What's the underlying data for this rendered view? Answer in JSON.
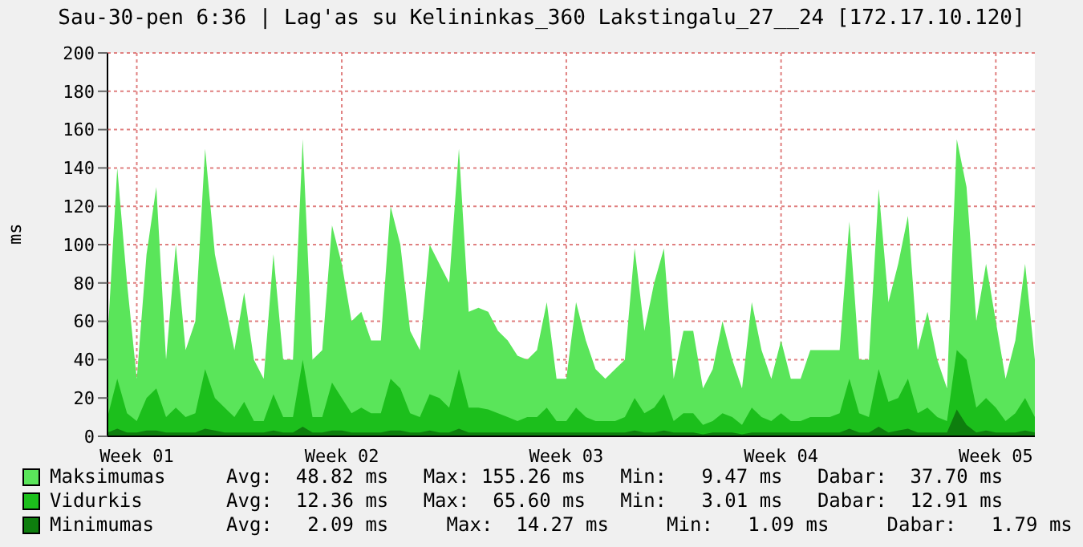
{
  "chart_data": {
    "type": "area",
    "title": "Sau-30-pen 6:36 | Lag'as su Kelininkas_360 Lakstingalu_27__24 [172.17.10.120]",
    "ylabel": "ms",
    "categories": [
      null,
      null,
      null,
      "Week 01",
      null,
      null,
      null,
      null,
      null,
      null,
      null,
      null,
      null,
      null,
      null,
      null,
      null,
      null,
      null,
      null,
      null,
      null,
      null,
      null,
      "Week 02",
      null,
      null,
      null,
      null,
      null,
      null,
      null,
      null,
      null,
      null,
      null,
      null,
      null,
      null,
      null,
      null,
      null,
      null,
      null,
      null,
      null,
      null,
      "Week 03",
      null,
      null,
      null,
      null,
      null,
      null,
      null,
      null,
      null,
      null,
      null,
      null,
      null,
      null,
      null,
      null,
      null,
      null,
      null,
      null,
      null,
      "Week 04",
      null,
      null,
      null,
      null,
      null,
      null,
      null,
      null,
      null,
      null,
      null,
      null,
      null,
      null,
      null,
      null,
      null,
      null,
      null,
      null,
      null,
      "Week 05",
      null,
      null,
      null,
      null
    ],
    "series": [
      {
        "name": "Maksimumas",
        "color": "#5ae55a",
        "values": [
          50,
          140,
          80,
          30,
          95,
          130,
          40,
          100,
          45,
          60,
          150,
          95,
          70,
          45,
          75,
          40,
          30,
          95,
          40,
          40,
          155,
          40,
          45,
          110,
          90,
          60,
          65,
          50,
          50,
          120,
          100,
          55,
          45,
          100,
          90,
          80,
          150,
          65,
          67,
          65,
          55,
          50,
          42,
          40,
          45,
          70,
          30,
          30,
          70,
          50,
          35,
          30,
          35,
          40,
          98,
          55,
          80,
          98,
          30,
          55,
          55,
          25,
          35,
          60,
          40,
          25,
          70,
          45,
          30,
          50,
          30,
          30,
          45,
          45,
          45,
          45,
          112,
          40,
          40,
          129,
          70,
          90,
          115,
          45,
          65,
          40,
          25,
          155,
          130,
          60,
          90,
          60,
          30,
          50,
          90,
          40
        ]
      },
      {
        "name": "Vidurkis",
        "color": "#1cbf1c",
        "values": [
          10,
          30,
          12,
          8,
          20,
          25,
          10,
          15,
          10,
          12,
          35,
          20,
          15,
          10,
          18,
          8,
          8,
          22,
          10,
          10,
          40,
          10,
          10,
          28,
          20,
          12,
          15,
          12,
          12,
          30,
          25,
          12,
          10,
          22,
          20,
          15,
          35,
          15,
          15,
          14,
          12,
          10,
          8,
          10,
          10,
          15,
          8,
          8,
          15,
          10,
          8,
          8,
          8,
          10,
          20,
          12,
          15,
          22,
          8,
          12,
          12,
          6,
          8,
          12,
          10,
          6,
          15,
          10,
          8,
          12,
          8,
          8,
          10,
          10,
          10,
          12,
          30,
          12,
          10,
          35,
          18,
          20,
          30,
          12,
          15,
          10,
          8,
          45,
          40,
          15,
          20,
          15,
          8,
          12,
          20,
          10
        ]
      },
      {
        "name": "Minimumas",
        "color": "#0e7e0e",
        "values": [
          2,
          4,
          2,
          2,
          3,
          3,
          2,
          2,
          2,
          2,
          4,
          3,
          2,
          2,
          2,
          2,
          2,
          3,
          2,
          2,
          5,
          2,
          2,
          3,
          3,
          2,
          2,
          2,
          2,
          3,
          3,
          2,
          2,
          3,
          2,
          2,
          4,
          2,
          2,
          2,
          2,
          2,
          2,
          2,
          2,
          2,
          2,
          2,
          2,
          2,
          2,
          2,
          2,
          2,
          3,
          2,
          2,
          3,
          2,
          2,
          2,
          1,
          2,
          2,
          2,
          1,
          2,
          2,
          2,
          2,
          2,
          2,
          2,
          2,
          2,
          2,
          4,
          2,
          2,
          5,
          2,
          3,
          4,
          2,
          2,
          2,
          2,
          14,
          6,
          2,
          3,
          2,
          2,
          2,
          3,
          2
        ]
      }
    ],
    "annotations": [
      "Avg:  48.82 ms   Max: 155.26 ms   Min:   9.47 ms   Dabar:  37.70 ms",
      "Avg:  12.36 ms   Max:  65.60 ms   Min:   3.01 ms   Dabar:  12.91 ms",
      "Avg:   2.09 ms     Max:  14.27 ms     Min:   1.09 ms     Dabar:   1.79 ms"
    ],
    "ylim": [
      0,
      200
    ],
    "yticks": [
      0,
      20,
      40,
      60,
      80,
      100,
      120,
      140,
      160,
      180,
      200
    ],
    "grid": true,
    "legend": "bottom"
  }
}
